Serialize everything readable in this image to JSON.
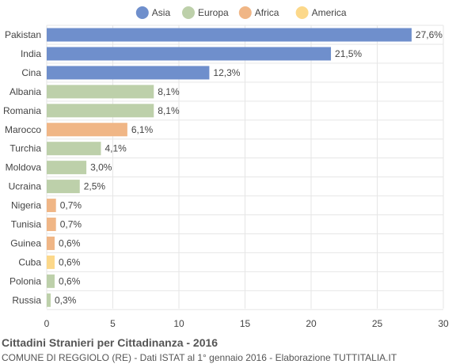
{
  "chart_data": {
    "type": "bar",
    "orientation": "horizontal",
    "title": "Cittadini Stranieri per Cittadinanza - 2016",
    "subtitle": "COMUNE DI REGGIOLO (RE) - Dati ISTAT al 1° gennaio 2016 - Elaborazione TUTTITALIA.IT",
    "legend": {
      "placement": "top-center",
      "entries": [
        {
          "name": "Asia",
          "color": "#6f8fcc"
        },
        {
          "name": "Europa",
          "color": "#bdd0aa"
        },
        {
          "name": "Africa",
          "color": "#f0b686"
        },
        {
          "name": "America",
          "color": "#fcd88a"
        }
      ]
    },
    "categories": [
      "Pakistan",
      "India",
      "Cina",
      "Albania",
      "Romania",
      "Marocco",
      "Turchia",
      "Moldova",
      "Ucraina",
      "Nigeria",
      "Tunisia",
      "Guinea",
      "Cuba",
      "Polonia",
      "Russia"
    ],
    "values": [
      27.6,
      21.5,
      12.3,
      8.1,
      8.1,
      6.1,
      4.1,
      3.0,
      2.5,
      0.7,
      0.7,
      0.6,
      0.6,
      0.6,
      0.3
    ],
    "value_labels": [
      "27,6%",
      "21,5%",
      "12,3%",
      "8,1%",
      "8,1%",
      "6,1%",
      "4,1%",
      "3,0%",
      "2,5%",
      "0,7%",
      "0,7%",
      "0,6%",
      "0,6%",
      "0,6%",
      "0,3%"
    ],
    "groups": [
      "Asia",
      "Asia",
      "Asia",
      "Europa",
      "Europa",
      "Africa",
      "Europa",
      "Europa",
      "Europa",
      "Africa",
      "Africa",
      "Africa",
      "America",
      "Europa",
      "Europa"
    ],
    "xlim": [
      0,
      30
    ],
    "xticks": [
      0,
      5,
      10,
      15,
      20,
      25,
      30
    ],
    "grid": true,
    "colors": {
      "grid": "#e6e6e6",
      "text": "#444444",
      "title": "#555555"
    }
  }
}
